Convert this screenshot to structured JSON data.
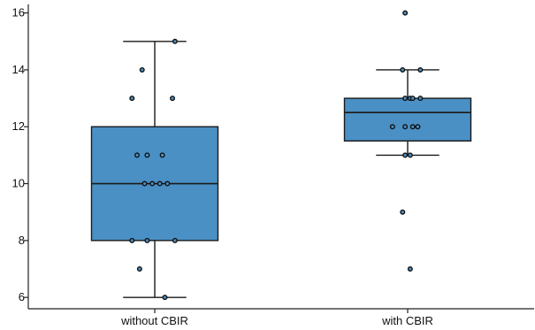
{
  "chart_data": {
    "type": "box",
    "title": "",
    "xlabel": "",
    "ylabel": "",
    "ylim": [
      5.6,
      16.3
    ],
    "yticks": [
      6,
      8,
      10,
      12,
      14,
      16
    ],
    "colors": {
      "box": "#4a90c4",
      "edge": "#1a1a1a",
      "axis": "#222222"
    },
    "groups": [
      {
        "label": "without CBIR",
        "min": 6,
        "q1": 8,
        "median": 10,
        "q3": 12,
        "max": 15,
        "points": [
          {
            "y": 15,
            "jit": 0.08
          },
          {
            "y": 14,
            "jit": -0.05
          },
          {
            "y": 13,
            "jit": -0.09
          },
          {
            "y": 13,
            "jit": 0.07
          },
          {
            "y": 11,
            "jit": -0.07
          },
          {
            "y": 11,
            "jit": -0.03
          },
          {
            "y": 11,
            "jit": 0.03
          },
          {
            "y": 10,
            "jit": -0.04
          },
          {
            "y": 10,
            "jit": -0.01
          },
          {
            "y": 10,
            "jit": 0.02
          },
          {
            "y": 10,
            "jit": 0.05
          },
          {
            "y": 8,
            "jit": -0.09
          },
          {
            "y": 8,
            "jit": -0.03
          },
          {
            "y": 8,
            "jit": 0.08
          },
          {
            "y": 7,
            "jit": -0.06
          },
          {
            "y": 6,
            "jit": 0.04
          }
        ]
      },
      {
        "label": "with CBIR",
        "min": 11,
        "q1": 11.5,
        "median": 12.5,
        "q3": 13,
        "max": 14,
        "points": [
          {
            "y": 16,
            "jit": -0.01
          },
          {
            "y": 14,
            "jit": -0.02
          },
          {
            "y": 14,
            "jit": 0.05
          },
          {
            "y": 13,
            "jit": -0.01
          },
          {
            "y": 13,
            "jit": 0.01
          },
          {
            "y": 13,
            "jit": 0.02
          },
          {
            "y": 13,
            "jit": 0.05
          },
          {
            "y": 12,
            "jit": -0.06
          },
          {
            "y": 12,
            "jit": -0.01
          },
          {
            "y": 12,
            "jit": 0.02
          },
          {
            "y": 12,
            "jit": 0.04
          },
          {
            "y": 11,
            "jit": -0.01
          },
          {
            "y": 11,
            "jit": 0.01
          },
          {
            "y": 9,
            "jit": -0.02
          },
          {
            "y": 7,
            "jit": 0.01
          }
        ]
      }
    ]
  }
}
